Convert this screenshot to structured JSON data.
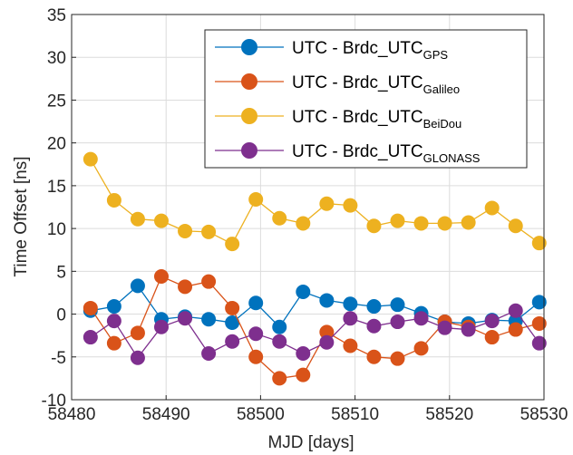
{
  "chart_data": {
    "type": "line",
    "xlabel": "MJD [days]",
    "ylabel": "Time Offset [ns]",
    "xlim": [
      58480,
      58530
    ],
    "ylim": [
      -10,
      35
    ],
    "xticks": [
      58480,
      58490,
      58500,
      58510,
      58520,
      58530
    ],
    "yticks": [
      -10,
      -5,
      0,
      5,
      10,
      15,
      20,
      25,
      30,
      35
    ],
    "grid": true,
    "legend_position": "top-right",
    "x": [
      58482,
      58484.5,
      58487,
      58489.5,
      58492,
      58494.5,
      58497,
      58499.5,
      58502,
      58504.5,
      58507,
      58509.5,
      58512,
      58514.5,
      58517,
      58519.5,
      58522,
      58524.5,
      58527,
      58529.5
    ],
    "series": [
      {
        "name": "UTC - Brdc_UTC",
        "subscript": "GPS",
        "color": "#0072BD",
        "values": [
          0.4,
          0.9,
          3.3,
          -0.6,
          -0.3,
          -0.6,
          -1.0,
          1.3,
          -1.5,
          2.6,
          1.6,
          1.2,
          0.9,
          1.1,
          0.1,
          -0.9,
          -1.1,
          -0.7,
          -0.8,
          1.4
        ]
      },
      {
        "name": "UTC - Brdc_UTC",
        "subscript": "Galileo",
        "color": "#D95319",
        "values": [
          0.7,
          -3.4,
          -2.2,
          4.4,
          3.2,
          3.8,
          0.7,
          -5.0,
          -7.5,
          -7.1,
          -2.1,
          -3.7,
          -5.0,
          -5.2,
          -4.0,
          -0.9,
          -1.5,
          -2.7,
          -1.8,
          -1.1
        ]
      },
      {
        "name": "UTC - Brdc_UTC",
        "subscript": "BeiDou",
        "color": "#EDB120",
        "values": [
          18.1,
          13.3,
          11.1,
          10.9,
          9.7,
          9.6,
          8.2,
          13.4,
          11.2,
          10.6,
          12.9,
          12.7,
          10.3,
          10.9,
          10.6,
          10.6,
          10.7,
          12.4,
          10.3,
          8.3
        ]
      },
      {
        "name": "UTC - Brdc_UTC",
        "subscript": "GLONASS",
        "color": "#7E2F8E",
        "values": [
          -2.7,
          -0.8,
          -5.1,
          -1.5,
          -0.5,
          -4.6,
          -3.2,
          -2.3,
          -3.2,
          -4.6,
          -3.3,
          -0.5,
          -1.4,
          -0.9,
          -0.5,
          -1.6,
          -1.8,
          -0.8,
          0.4,
          -3.4
        ]
      }
    ]
  }
}
